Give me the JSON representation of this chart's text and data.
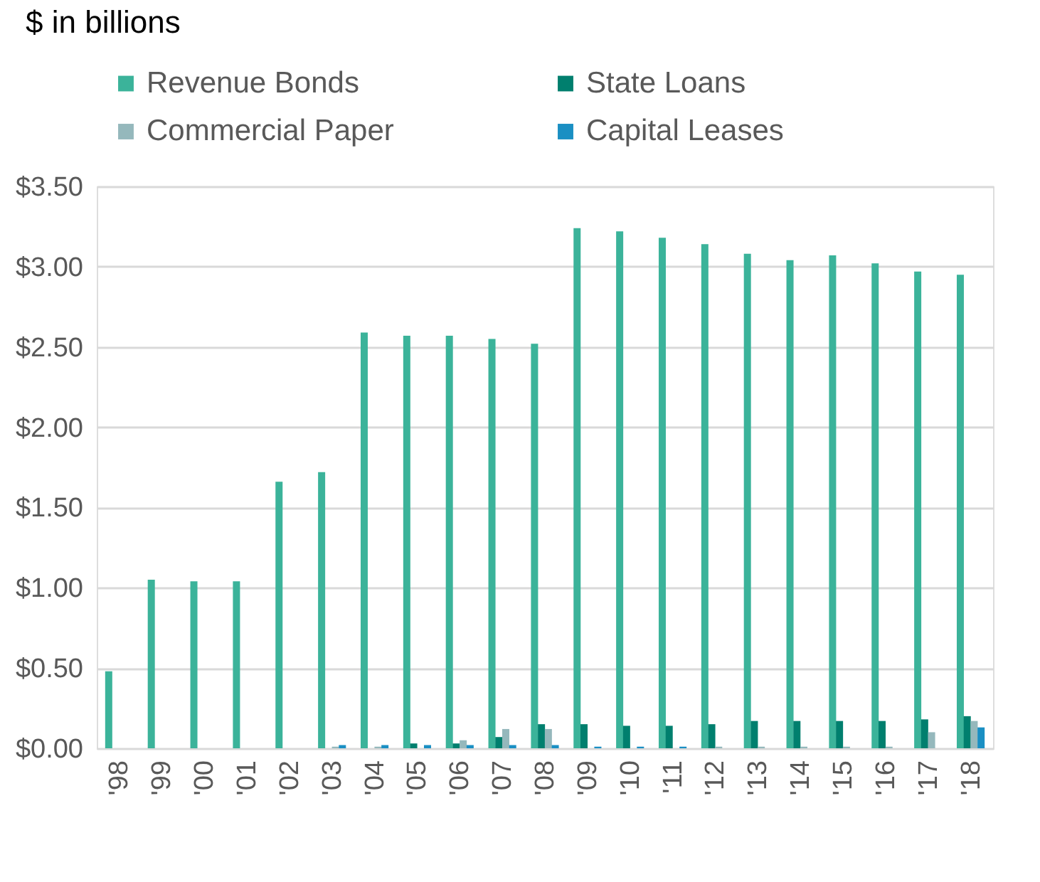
{
  "chart_data": {
    "type": "bar",
    "title": "$ in billions",
    "categories": [
      "'98",
      "'99",
      "'00",
      "'01",
      "'02",
      "'03",
      "'04",
      "'05",
      "'06",
      "'07",
      "'08",
      "'09",
      "'10",
      "'11",
      "'12",
      "'13",
      "'14",
      "'15",
      "'16",
      "'17",
      "'18"
    ],
    "series": [
      {
        "name": "Revenue Bonds",
        "color": "#3bb39a",
        "values": [
          0.48,
          1.05,
          1.04,
          1.04,
          1.66,
          1.72,
          2.59,
          2.57,
          2.57,
          2.55,
          2.52,
          3.24,
          3.22,
          3.18,
          3.14,
          3.08,
          3.04,
          3.07,
          3.02,
          2.97,
          2.95
        ]
      },
      {
        "name": "State Loans",
        "color": "#007f6e",
        "values": [
          0,
          0,
          0,
          0,
          0,
          0,
          0,
          0.03,
          0.03,
          0.07,
          0.15,
          0.15,
          0.14,
          0.14,
          0.15,
          0.17,
          0.17,
          0.17,
          0.17,
          0.18,
          0.2
        ]
      },
      {
        "name": "Commercial Paper",
        "color": "#95b8bc",
        "values": [
          0,
          0,
          0,
          0,
          0,
          0.01,
          0.01,
          0,
          0.05,
          0.12,
          0.12,
          0,
          0,
          0,
          0.01,
          0.01,
          0.01,
          0.01,
          0.01,
          0.1,
          0.17
        ]
      },
      {
        "name": "Capital Leases",
        "color": "#1a8fc3",
        "values": [
          0,
          0,
          0,
          0,
          0,
          0.02,
          0.02,
          0.02,
          0.02,
          0.02,
          0.02,
          0.01,
          0.01,
          0.01,
          0,
          0,
          0,
          0,
          0,
          0,
          0.13
        ]
      }
    ],
    "ylim": [
      0,
      3.5
    ],
    "yticks": [
      {
        "value": 0,
        "label": "$0.00"
      },
      {
        "value": 0.5,
        "label": "$0.50"
      },
      {
        "value": 1,
        "label": "$1.00"
      },
      {
        "value": 1.5,
        "label": "$1.50"
      },
      {
        "value": 2,
        "label": "$2.00"
      },
      {
        "value": 2.5,
        "label": "$2.50"
      },
      {
        "value": 3,
        "label": "$3.00"
      },
      {
        "value": 3.5,
        "label": "$3.50"
      }
    ],
    "grid": "y",
    "legend": "top"
  }
}
